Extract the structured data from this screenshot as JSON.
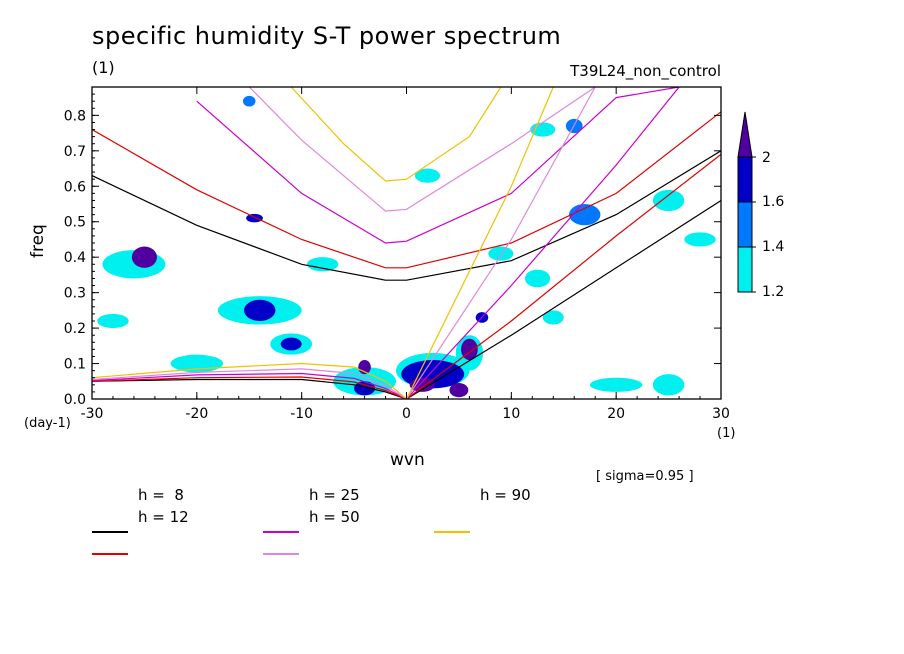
{
  "title": "specific humidity S-T power spectrum",
  "subtitle": "(1)",
  "run_label": "T39L24_non_control",
  "sigma_label": "[ sigma=0.95 ]",
  "colors": {
    "h8": "#000000",
    "h12": "#e00000",
    "h25": "#cc00cc",
    "h50": "#dd88dd",
    "h90": "#f0c000",
    "shade_12": "#00f0f0",
    "shade_14": "#0078ff",
    "shade_16": "#0000c8",
    "shade_2": "#5000a0"
  },
  "chart_data": {
    "type": "contour",
    "xlabel": "wvn",
    "ylabel": "freq",
    "x_unit": "(1)",
    "y_unit": "(day-1)",
    "xlim": [
      -30,
      30
    ],
    "ylim": [
      0,
      0.88
    ],
    "x_ticks": [
      "-30",
      "-20",
      "-10",
      "0",
      "10",
      "20",
      "30"
    ],
    "y_ticks": [
      "0.0",
      "0.1",
      "0.2",
      "0.3",
      "0.4",
      "0.5",
      "0.6",
      "0.7",
      "0.8"
    ],
    "colorbar": {
      "levels": [
        "1.2",
        "1.4",
        "1.6",
        "2"
      ],
      "colors": [
        "#00f0f0",
        "#0078ff",
        "#0000c8",
        "#5000a0"
      ]
    },
    "legend": [
      {
        "label": "h =  8",
        "color": "#000000"
      },
      {
        "label": "h = 12",
        "color": "#e00000"
      },
      {
        "label": "h = 25",
        "color": "#cc00cc"
      },
      {
        "label": "h = 50",
        "color": "#dd88dd"
      },
      {
        "label": "h = 90",
        "color": "#f0c000"
      }
    ],
    "series": [
      {
        "name": "h =  8",
        "inertia_gravity": [
          [
            -30,
            0.63
          ],
          [
            -20,
            0.49
          ],
          [
            -10,
            0.38
          ],
          [
            -2,
            0.335
          ],
          [
            0,
            0.335
          ],
          [
            10,
            0.39
          ],
          [
            20,
            0.52
          ],
          [
            30,
            0.7
          ]
        ],
        "kelvin": [
          [
            0,
            0.0
          ],
          [
            10,
            0.18
          ],
          [
            20,
            0.37
          ],
          [
            30,
            0.56
          ]
        ],
        "rossby": [
          [
            -30,
            0.05
          ],
          [
            -20,
            0.055
          ],
          [
            -10,
            0.055
          ],
          [
            -5,
            0.04
          ],
          [
            -2,
            0.02
          ],
          [
            0,
            0.0
          ]
        ]
      },
      {
        "name": "h = 12",
        "inertia_gravity": [
          [
            -30,
            0.76
          ],
          [
            -20,
            0.59
          ],
          [
            -10,
            0.45
          ],
          [
            -2,
            0.37
          ],
          [
            0,
            0.37
          ],
          [
            10,
            0.44
          ],
          [
            20,
            0.58
          ],
          [
            30,
            0.81
          ]
        ],
        "kelvin": [
          [
            0,
            0.0
          ],
          [
            10,
            0.22
          ],
          [
            20,
            0.46
          ],
          [
            30,
            0.69
          ]
        ],
        "rossby": [
          [
            -30,
            0.05
          ],
          [
            -20,
            0.06
          ],
          [
            -10,
            0.062
          ],
          [
            -5,
            0.048
          ],
          [
            -2,
            0.024
          ],
          [
            0,
            0.0
          ]
        ]
      },
      {
        "name": "h = 25",
        "inertia_gravity": [
          [
            -20,
            0.84
          ],
          [
            -10,
            0.58
          ],
          [
            -2,
            0.44
          ],
          [
            0,
            0.445
          ],
          [
            10,
            0.58
          ],
          [
            20,
            0.85
          ],
          [
            26,
            0.88
          ]
        ],
        "kelvin": [
          [
            0,
            0.0
          ],
          [
            10,
            0.32
          ],
          [
            20,
            0.66
          ],
          [
            26,
            0.88
          ]
        ],
        "rossby": [
          [
            -30,
            0.052
          ],
          [
            -20,
            0.068
          ],
          [
            -10,
            0.072
          ],
          [
            -5,
            0.058
          ],
          [
            -2,
            0.03
          ],
          [
            0,
            0.0
          ]
        ]
      },
      {
        "name": "h = 50",
        "inertia_gravity": [
          [
            -15,
            0.88
          ],
          [
            -10,
            0.73
          ],
          [
            -2,
            0.53
          ],
          [
            0,
            0.535
          ],
          [
            10,
            0.72
          ],
          [
            18,
            0.88
          ]
        ],
        "kelvin": [
          [
            0,
            0.0
          ],
          [
            10,
            0.45
          ],
          [
            18,
            0.88
          ]
        ],
        "rossby": [
          [
            -30,
            0.055
          ],
          [
            -20,
            0.075
          ],
          [
            -10,
            0.085
          ],
          [
            -5,
            0.072
          ],
          [
            -2,
            0.038
          ],
          [
            0,
            0.0
          ]
        ]
      },
      {
        "name": "h = 90",
        "inertia_gravity": [
          [
            -11,
            0.88
          ],
          [
            -6,
            0.72
          ],
          [
            -2,
            0.615
          ],
          [
            0,
            0.62
          ],
          [
            6,
            0.74
          ],
          [
            9,
            0.88
          ]
        ],
        "kelvin": [
          [
            0,
            0.0
          ],
          [
            10,
            0.6
          ],
          [
            14,
            0.88
          ]
        ],
        "rossby": [
          [
            -30,
            0.06
          ],
          [
            -20,
            0.085
          ],
          [
            -10,
            0.1
          ],
          [
            -5,
            0.09
          ],
          [
            -2,
            0.05
          ],
          [
            0,
            0.0
          ]
        ]
      }
    ],
    "shaded_regions": [
      {
        "x": -25,
        "y": 0.4,
        "rx": 1.2,
        "ry": 0.03,
        "level": "2"
      },
      {
        "x": -26,
        "y": 0.38,
        "rx": 3,
        "ry": 0.04,
        "level": "1.2"
      },
      {
        "x": -14.5,
        "y": 0.51,
        "rx": 0.8,
        "ry": 0.012,
        "level": "1.6"
      },
      {
        "x": -14,
        "y": 0.25,
        "rx": 1.5,
        "ry": 0.03,
        "level": "1.6"
      },
      {
        "x": -14,
        "y": 0.25,
        "rx": 4,
        "ry": 0.04,
        "level": "1.2"
      },
      {
        "x": -11,
        "y": 0.155,
        "rx": 1,
        "ry": 0.018,
        "level": "1.6"
      },
      {
        "x": -11,
        "y": 0.155,
        "rx": 2,
        "ry": 0.03,
        "level": "1.2"
      },
      {
        "x": -4,
        "y": 0.05,
        "rx": 3,
        "ry": 0.04,
        "level": "1.2"
      },
      {
        "x": -4,
        "y": 0.03,
        "rx": 1,
        "ry": 0.02,
        "level": "1.6"
      },
      {
        "x": -4,
        "y": 0.09,
        "rx": 0.6,
        "ry": 0.02,
        "level": "2"
      },
      {
        "x": 2.5,
        "y": 0.07,
        "rx": 3,
        "ry": 0.04,
        "level": "1.6"
      },
      {
        "x": 2.5,
        "y": 0.08,
        "rx": 3.5,
        "ry": 0.05,
        "level": "1.2"
      },
      {
        "x": 1.5,
        "y": 0.04,
        "rx": 1.2,
        "ry": 0.02,
        "level": "2"
      },
      {
        "x": 5,
        "y": 0.025,
        "rx": 0.9,
        "ry": 0.02,
        "level": "2"
      },
      {
        "x": 6,
        "y": 0.14,
        "rx": 0.8,
        "ry": 0.03,
        "level": "2"
      },
      {
        "x": 6,
        "y": 0.13,
        "rx": 1.3,
        "ry": 0.05,
        "level": "1.2"
      },
      {
        "x": 7.2,
        "y": 0.23,
        "rx": 0.6,
        "ry": 0.015,
        "level": "1.6"
      },
      {
        "x": 12.5,
        "y": 0.34,
        "rx": 1.2,
        "ry": 0.025,
        "level": "1.2"
      },
      {
        "x": 13,
        "y": 0.76,
        "rx": 1.2,
        "ry": 0.02,
        "level": "1.2"
      },
      {
        "x": 16,
        "y": 0.77,
        "rx": 0.8,
        "ry": 0.02,
        "level": "1.4"
      },
      {
        "x": 17,
        "y": 0.52,
        "rx": 1.5,
        "ry": 0.03,
        "level": "1.4"
      },
      {
        "x": 25,
        "y": 0.56,
        "rx": 1.5,
        "ry": 0.03,
        "level": "1.2"
      },
      {
        "x": 20,
        "y": 0.04,
        "rx": 2.5,
        "ry": 0.02,
        "level": "1.2"
      },
      {
        "x": 25,
        "y": 0.04,
        "rx": 1.5,
        "ry": 0.03,
        "level": "1.2"
      },
      {
        "x": -8,
        "y": 0.38,
        "rx": 1.5,
        "ry": 0.02,
        "level": "1.2"
      },
      {
        "x": -20,
        "y": 0.1,
        "rx": 2.5,
        "ry": 0.025,
        "level": "1.2"
      },
      {
        "x": -28,
        "y": 0.22,
        "rx": 1.5,
        "ry": 0.02,
        "level": "1.2"
      },
      {
        "x": 2,
        "y": 0.63,
        "rx": 1.2,
        "ry": 0.02,
        "level": "1.2"
      },
      {
        "x": 9,
        "y": 0.41,
        "rx": 1.2,
        "ry": 0.02,
        "level": "1.2"
      },
      {
        "x": 14,
        "y": 0.23,
        "rx": 1,
        "ry": 0.02,
        "level": "1.2"
      },
      {
        "x": 28,
        "y": 0.45,
        "rx": 1.5,
        "ry": 0.02,
        "level": "1.2"
      },
      {
        "x": -15,
        "y": 0.84,
        "rx": 0.6,
        "ry": 0.015,
        "level": "1.4"
      }
    ]
  }
}
